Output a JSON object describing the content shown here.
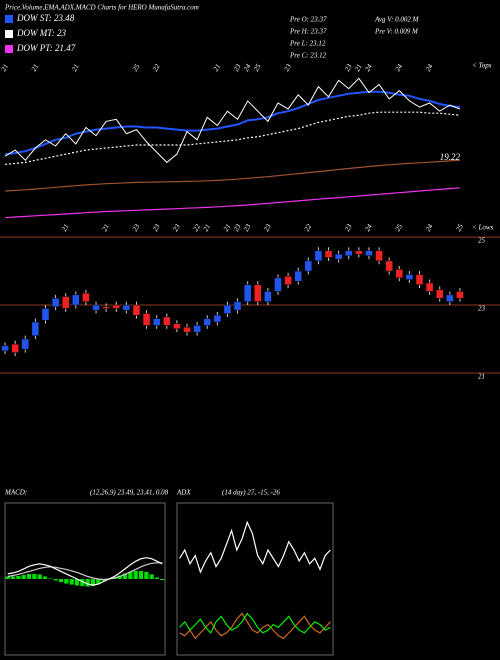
{
  "header": {
    "title": "Price,Volume,EMA,ADX,MACD Charts for HERO MunafaSutra.com",
    "quote": [
      "Pre  O: 23.37",
      "Pre  H: 23.37",
      "Pre  L: 23.12",
      "Pre  C: 23.12"
    ],
    "volume": [
      "Avg  V: 0.002  M",
      "Pre  V: 0.009  M"
    ]
  },
  "chart_data": [
    {
      "type": "line",
      "categories": [
        "21",
        null,
        null,
        "21",
        null,
        null,
        null,
        "21",
        null,
        null,
        null,
        null,
        null,
        "25",
        null,
        "22",
        null,
        null,
        null,
        null,
        null,
        "21",
        null,
        "23",
        "24",
        "25",
        null,
        null,
        "23",
        null,
        null,
        null,
        null,
        null,
        "23",
        "21",
        "24",
        null,
        null,
        "24",
        null,
        null,
        "24",
        null,
        null,
        null
      ],
      "values": [
        21.2,
        21.5,
        21.0,
        21.6,
        22.0,
        21.7,
        22.3,
        21.8,
        22.6,
        22.2,
        22.9,
        23.0,
        22.3,
        22.5,
        21.9,
        21.4,
        20.9,
        21.3,
        22.4,
        22.0,
        23.1,
        22.7,
        23.4,
        23.0,
        23.9,
        23.4,
        22.9,
        23.8,
        23.5,
        24.2,
        23.7,
        24.6,
        24.1,
        24.9,
        24.5,
        25.0,
        24.3,
        24.7,
        24.0,
        24.4,
        23.9,
        23.6,
        23.8,
        23.4,
        23.7,
        23.5
      ],
      "color": "#ffffff",
      "series": [
        {
          "name": "DOW ST: 23.48",
          "color": "#2255ff",
          "values": [
            21.3,
            21.35,
            21.45,
            21.6,
            21.8,
            22.0,
            22.1,
            22.3,
            22.4,
            22.5,
            22.55,
            22.6,
            22.65,
            22.65,
            22.6,
            22.6,
            22.55,
            22.5,
            22.45,
            22.45,
            22.5,
            22.55,
            22.65,
            22.75,
            22.95,
            23.0,
            23.1,
            23.3,
            23.4,
            23.55,
            23.75,
            23.95,
            24.05,
            24.15,
            24.25,
            24.3,
            24.35,
            24.35,
            24.3,
            24.2,
            24.15,
            24.0,
            23.9,
            23.75,
            23.65,
            23.6
          ]
        },
        {
          "name": "DOW MT: 23",
          "color": "#ffffff",
          "dashed": true,
          "values": [
            20.8,
            20.85,
            20.9,
            21.0,
            21.1,
            21.2,
            21.3,
            21.4,
            21.5,
            21.55,
            21.6,
            21.65,
            21.7,
            21.75,
            21.75,
            21.75,
            21.75,
            21.75,
            21.75,
            21.8,
            21.85,
            21.9,
            21.95,
            22.0,
            22.1,
            22.15,
            22.25,
            22.35,
            22.45,
            22.55,
            22.7,
            22.85,
            22.95,
            23.05,
            23.15,
            23.2,
            23.3,
            23.35,
            23.35,
            23.35,
            23.35,
            23.35,
            23.3,
            23.3,
            23.25,
            23.2
          ]
        },
        {
          "name": "DOW PT: 21.47",
          "color": "#ee33ee",
          "values": [
            18.2,
            18.23,
            18.26,
            18.29,
            18.32,
            18.35,
            18.38,
            18.41,
            18.44,
            18.47,
            18.5,
            18.52,
            18.54,
            18.56,
            18.58,
            18.6,
            18.62,
            18.64,
            18.66,
            18.68,
            18.7,
            18.73,
            18.76,
            18.79,
            18.82,
            18.86,
            18.9,
            18.94,
            18.98,
            19.02,
            19.06,
            19.1,
            19.14,
            19.18,
            19.22,
            19.26,
            19.3,
            19.34,
            19.38,
            19.42,
            19.46,
            19.5,
            19.54,
            19.58,
            19.62,
            19.66
          ]
        },
        {
          "color": "#a0522d",
          "values": [
            19.5,
            19.53,
            19.56,
            19.6,
            19.64,
            19.68,
            19.72,
            19.76,
            19.8,
            19.83,
            19.86,
            19.88,
            19.9,
            19.92,
            19.93,
            19.94,
            19.95,
            19.96,
            19.97,
            19.98,
            20.0,
            20.02,
            20.05,
            20.08,
            20.12,
            20.16,
            20.2,
            20.25,
            20.3,
            20.35,
            20.4,
            20.45,
            20.5,
            20.55,
            20.6,
            20.65,
            20.7,
            20.74,
            20.78,
            20.82,
            20.85,
            20.88,
            20.91,
            20.94,
            20.97,
            21.0
          ]
        }
      ],
      "ylim": [
        17.5,
        25.8
      ],
      "annotations": [
        "19.22",
        "< Tops",
        "< Lows"
      ]
    },
    {
      "type": "candlestick",
      "categories": [
        null,
        null,
        null,
        null,
        null,
        null,
        "21",
        null,
        null,
        null,
        "21",
        null,
        null,
        "23",
        null,
        "23",
        null,
        "23",
        null,
        "22",
        "21",
        null,
        "21",
        "23",
        "23",
        null,
        "23",
        null,
        null,
        null,
        "22",
        null,
        null,
        null,
        "23",
        null,
        "24",
        null,
        null,
        "25",
        null,
        null,
        "24",
        null,
        null,
        "25"
      ],
      "open": [
        21.65,
        21.85,
        21.7,
        22.1,
        22.55,
        22.95,
        23.25,
        23.0,
        23.35,
        22.85,
        22.95,
        23.0,
        22.85,
        23.0,
        22.75,
        22.4,
        22.65,
        22.45,
        22.35,
        22.2,
        22.4,
        22.5,
        22.75,
        22.85,
        23.1,
        23.6,
        23.1,
        23.4,
        23.85,
        23.7,
        24.0,
        24.3,
        24.6,
        24.35,
        24.45,
        24.6,
        24.45,
        24.6,
        24.3,
        24.05,
        23.75,
        23.9,
        23.65,
        23.45,
        23.1,
        23.4
      ],
      "high": [
        21.9,
        21.95,
        22.1,
        22.6,
        23.0,
        23.3,
        23.35,
        23.4,
        23.45,
        23.1,
        23.05,
        23.1,
        23.1,
        23.1,
        22.85,
        22.7,
        22.75,
        22.55,
        22.45,
        22.5,
        22.7,
        22.8,
        23.1,
        23.2,
        23.7,
        23.7,
        23.5,
        23.9,
        23.95,
        24.1,
        24.4,
        24.7,
        24.7,
        24.6,
        24.7,
        24.7,
        24.7,
        24.7,
        24.4,
        24.15,
        24.0,
        24.0,
        23.75,
        23.55,
        23.4,
        23.5
      ],
      "low": [
        21.55,
        21.5,
        21.6,
        22.0,
        22.45,
        22.85,
        22.8,
        22.9,
        23.0,
        22.75,
        22.8,
        22.8,
        22.75,
        22.6,
        22.3,
        22.3,
        22.3,
        22.2,
        22.1,
        22.1,
        22.3,
        22.4,
        22.65,
        22.75,
        23.0,
        23.0,
        23.0,
        23.3,
        23.5,
        23.6,
        23.9,
        24.2,
        24.3,
        24.25,
        24.35,
        24.4,
        24.35,
        24.2,
        23.9,
        23.7,
        23.65,
        23.5,
        23.3,
        23.1,
        23.0,
        23.1
      ],
      "close": [
        21.8,
        21.6,
        22.0,
        22.5,
        22.9,
        23.2,
        22.9,
        23.3,
        23.1,
        23.0,
        22.9,
        22.9,
        23.0,
        22.7,
        22.4,
        22.6,
        22.4,
        22.3,
        22.2,
        22.4,
        22.6,
        22.7,
        23.0,
        23.1,
        23.6,
        23.1,
        23.4,
        23.8,
        23.6,
        24.0,
        24.3,
        24.6,
        24.4,
        24.5,
        24.6,
        24.5,
        24.6,
        24.3,
        24.0,
        23.8,
        23.9,
        23.6,
        23.4,
        23.2,
        23.3,
        23.2
      ],
      "up_color": "#2255ee",
      "down_color": "#ee2222",
      "grid_color": "#8b3a1a",
      "ylim": [
        17.85,
        25.15
      ],
      "yticks": [
        25,
        23,
        21
      ]
    },
    {
      "type": "line",
      "title": "MACD:",
      "subtitle": "(12,26,9) 23.49, 23.41, 0.08",
      "series": [
        {
          "color": "#ffffff",
          "values": [
            0.1,
            0.12,
            0.15,
            0.2,
            0.25,
            0.28,
            0.3,
            0.28,
            0.25,
            0.2,
            0.15,
            0.1,
            0.05,
            0.0,
            -0.05,
            -0.1,
            -0.12,
            -0.1,
            -0.05,
            0.0,
            0.05,
            0.12,
            0.2,
            0.28,
            0.35,
            0.4,
            0.42,
            0.4,
            0.35,
            0.3
          ]
        },
        {
          "color": "#cccccc",
          "values": [
            0.05,
            0.07,
            0.09,
            0.12,
            0.15,
            0.18,
            0.21,
            0.23,
            0.24,
            0.23,
            0.21,
            0.19,
            0.16,
            0.13,
            0.09,
            0.05,
            0.02,
            0.0,
            -0.01,
            0.0,
            0.02,
            0.05,
            0.09,
            0.14,
            0.19,
            0.24,
            0.28,
            0.31,
            0.32,
            0.32
          ]
        }
      ],
      "histogram": [
        0.05,
        0.05,
        0.06,
        0.08,
        0.1,
        0.1,
        0.09,
        0.05,
        0.01,
        -0.03,
        -0.06,
        -0.09,
        -0.11,
        -0.13,
        -0.14,
        -0.15,
        -0.14,
        -0.1,
        -0.04,
        0.0,
        0.03,
        0.07,
        0.11,
        0.14,
        0.16,
        0.16,
        0.14,
        0.09,
        0.03,
        -0.02
      ],
      "hist_color": "#00dd00",
      "ylim": [
        -1.5,
        1.5
      ]
    },
    {
      "type": "line",
      "title": "ADX",
      "subtitle": "(14 day) 27, -15, -26",
      "series": [
        {
          "color": "#ffffff",
          "values": [
            35,
            38,
            33,
            36,
            30,
            34,
            37,
            32,
            35,
            40,
            45,
            38,
            42,
            48,
            44,
            36,
            33,
            38,
            35,
            32,
            36,
            41,
            38,
            34,
            37,
            33,
            35,
            31,
            36,
            38
          ]
        },
        {
          "color": "#00ee00",
          "values": [
            10,
            12,
            9,
            11,
            13,
            10,
            8,
            12,
            14,
            11,
            9,
            10,
            12,
            15,
            13,
            10,
            8,
            9,
            11,
            10,
            12,
            14,
            11,
            9,
            8,
            10,
            12,
            11,
            9,
            10
          ]
        },
        {
          "color": "#d2691e",
          "values": [
            8,
            7,
            9,
            6,
            8,
            10,
            12,
            9,
            7,
            8,
            10,
            13,
            15,
            12,
            9,
            8,
            10,
            11,
            9,
            7,
            6,
            8,
            10,
            12,
            14,
            11,
            9,
            8,
            10,
            12
          ]
        }
      ],
      "ylim": [
        0,
        55
      ]
    }
  ]
}
